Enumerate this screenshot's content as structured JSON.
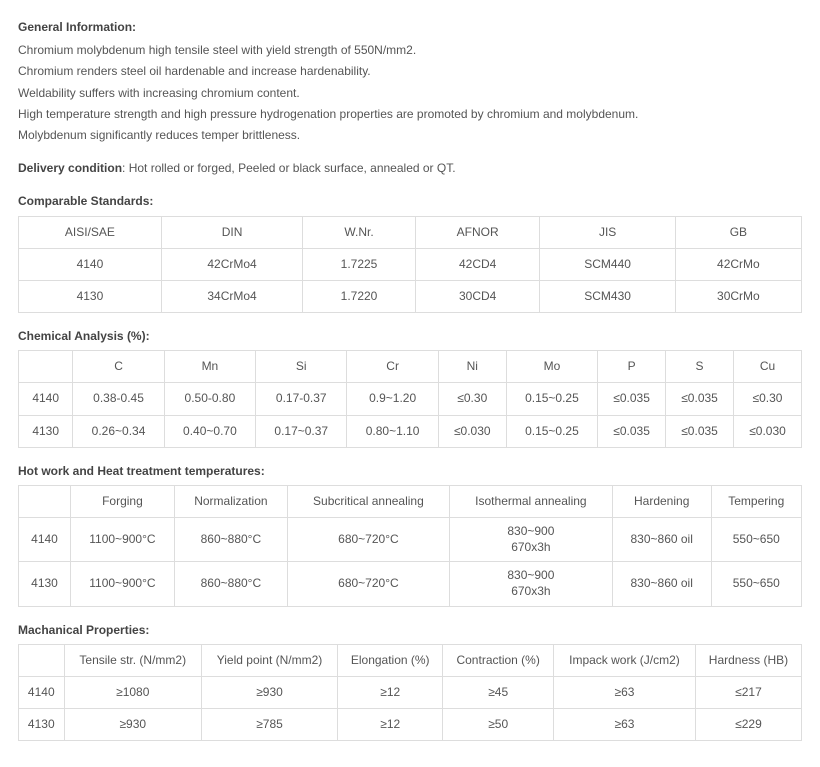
{
  "general_info": {
    "title": "General Information:",
    "lines": [
      "Chromium molybdenum high tensile steel with yield strength of 550N/mm2.",
      "Chromium renders steel oil hardenable and increase hardenability.",
      "Weldability suffers with increasing chromium content.",
      "High temperature strength and high pressure hydrogenation properties are promoted by chromium and molybdenum.",
      "Molybdenum significantly reduces temper brittleness."
    ]
  },
  "delivery": {
    "label": "Delivery condition",
    "text": ": Hot rolled or forged, Peeled or black surface, annealed or QT."
  },
  "comparable": {
    "title": "Comparable Standards:",
    "columns": [
      "AISI/SAE",
      "DIN",
      "W.Nr.",
      "AFNOR",
      "JIS",
      "GB"
    ],
    "rows": [
      [
        "4140",
        "42CrMo4",
        "1.7225",
        "42CD4",
        "SCM440",
        "42CrMo"
      ],
      [
        "4130",
        "34CrMo4",
        "1.7220",
        "30CD4",
        "SCM430",
        "30CrMo"
      ]
    ]
  },
  "chemical": {
    "title": "Chemical Analysis (%):",
    "columns": [
      "",
      "C",
      "Mn",
      "Si",
      "Cr",
      "Ni",
      "Mo",
      "P",
      "S",
      "Cu"
    ],
    "rows": [
      [
        "4140",
        "0.38-0.45",
        "0.50-0.80",
        "0.17-0.37",
        "0.9~1.20",
        "≤0.30",
        "0.15~0.25",
        "≤0.035",
        "≤0.035",
        "≤0.30"
      ],
      [
        "4130",
        "0.26~0.34",
        "0.40~0.70",
        "0.17~0.37",
        "0.80~1.10",
        "≤0.030",
        "0.15~0.25",
        "≤0.035",
        "≤0.035",
        "≤0.030"
      ]
    ]
  },
  "heat": {
    "title": "Hot work and Heat treatment temperatures:",
    "columns": [
      "",
      "Forging",
      "Normalization",
      "Subcritical annealing",
      "Isothermal annealing",
      "Hardening",
      "Tempering"
    ],
    "rows": [
      [
        "4140",
        "1100~900°C",
        "860~880°C",
        "680~720°C",
        "830~900\n670x3h",
        "830~860 oil",
        "550~650"
      ],
      [
        "4130",
        "1100~900°C",
        "860~880°C",
        "680~720°C",
        "830~900\n670x3h",
        "830~860 oil",
        "550~650"
      ]
    ]
  },
  "mech": {
    "title": "Machanical Properties:",
    "columns": [
      "",
      "Tensile str. (N/mm2)",
      "Yield point (N/mm2)",
      "Elongation (%)",
      "Contraction (%)",
      "Impack work (J/cm2)",
      "Hardness (HB)"
    ],
    "rows": [
      [
        "4140",
        "≥1080",
        "≥930",
        "≥12",
        "≥45",
        "≥63",
        "≤217"
      ],
      [
        "4130",
        "≥930",
        "≥785",
        "≥12",
        "≥50",
        "≥63",
        "≤229"
      ]
    ]
  }
}
